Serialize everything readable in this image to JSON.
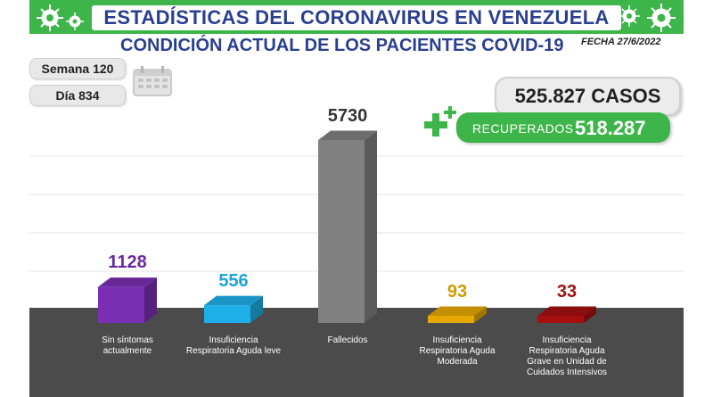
{
  "header": {
    "title": "ESTADÍSTICAS DEL CORONAVIRUS EN VENEZUELA",
    "subtitle": "CONDICIÓN ACTUAL DE LOS PACIENTES COVID-19",
    "date": "FECHA 27/6/2022"
  },
  "info": {
    "week": "Semana 120",
    "day": "Día 834"
  },
  "totals": {
    "cases": "525.827 CASOS",
    "recovered_label": "RECUPERADOS",
    "recovered_value": "518.287"
  },
  "icons": [
    "virus-icon",
    "calendar-icon",
    "plus-icon"
  ],
  "colors": {
    "header_green": "#3db54a",
    "title_blue": "#2a3f8f",
    "floor": "#4b4b4b"
  },
  "chart_data": {
    "type": "bar",
    "categories": [
      "Sin síntomas actualmente",
      "Insuficiencia Respiratoria Aguda leve",
      "Fallecidos",
      "Insuficiencia Respiratoria Aguda Moderada",
      "Insuficiencia Respiratoria Aguda Grave en Unidad de Cuidados Intensivos"
    ],
    "values": [
      1128,
      556,
      5730,
      93,
      33
    ],
    "labels": [
      "1128",
      "556",
      "5730",
      "93",
      "33"
    ],
    "colors": [
      "#7b2fb3",
      "#1eaee8",
      "#808080",
      "#e6a800",
      "#a50f0f"
    ],
    "label_colors": [
      "#6a2a9e",
      "#1aa3d8",
      "#333333",
      "#d19b00",
      "#a01010"
    ],
    "ylim": [
      0,
      5730
    ]
  }
}
